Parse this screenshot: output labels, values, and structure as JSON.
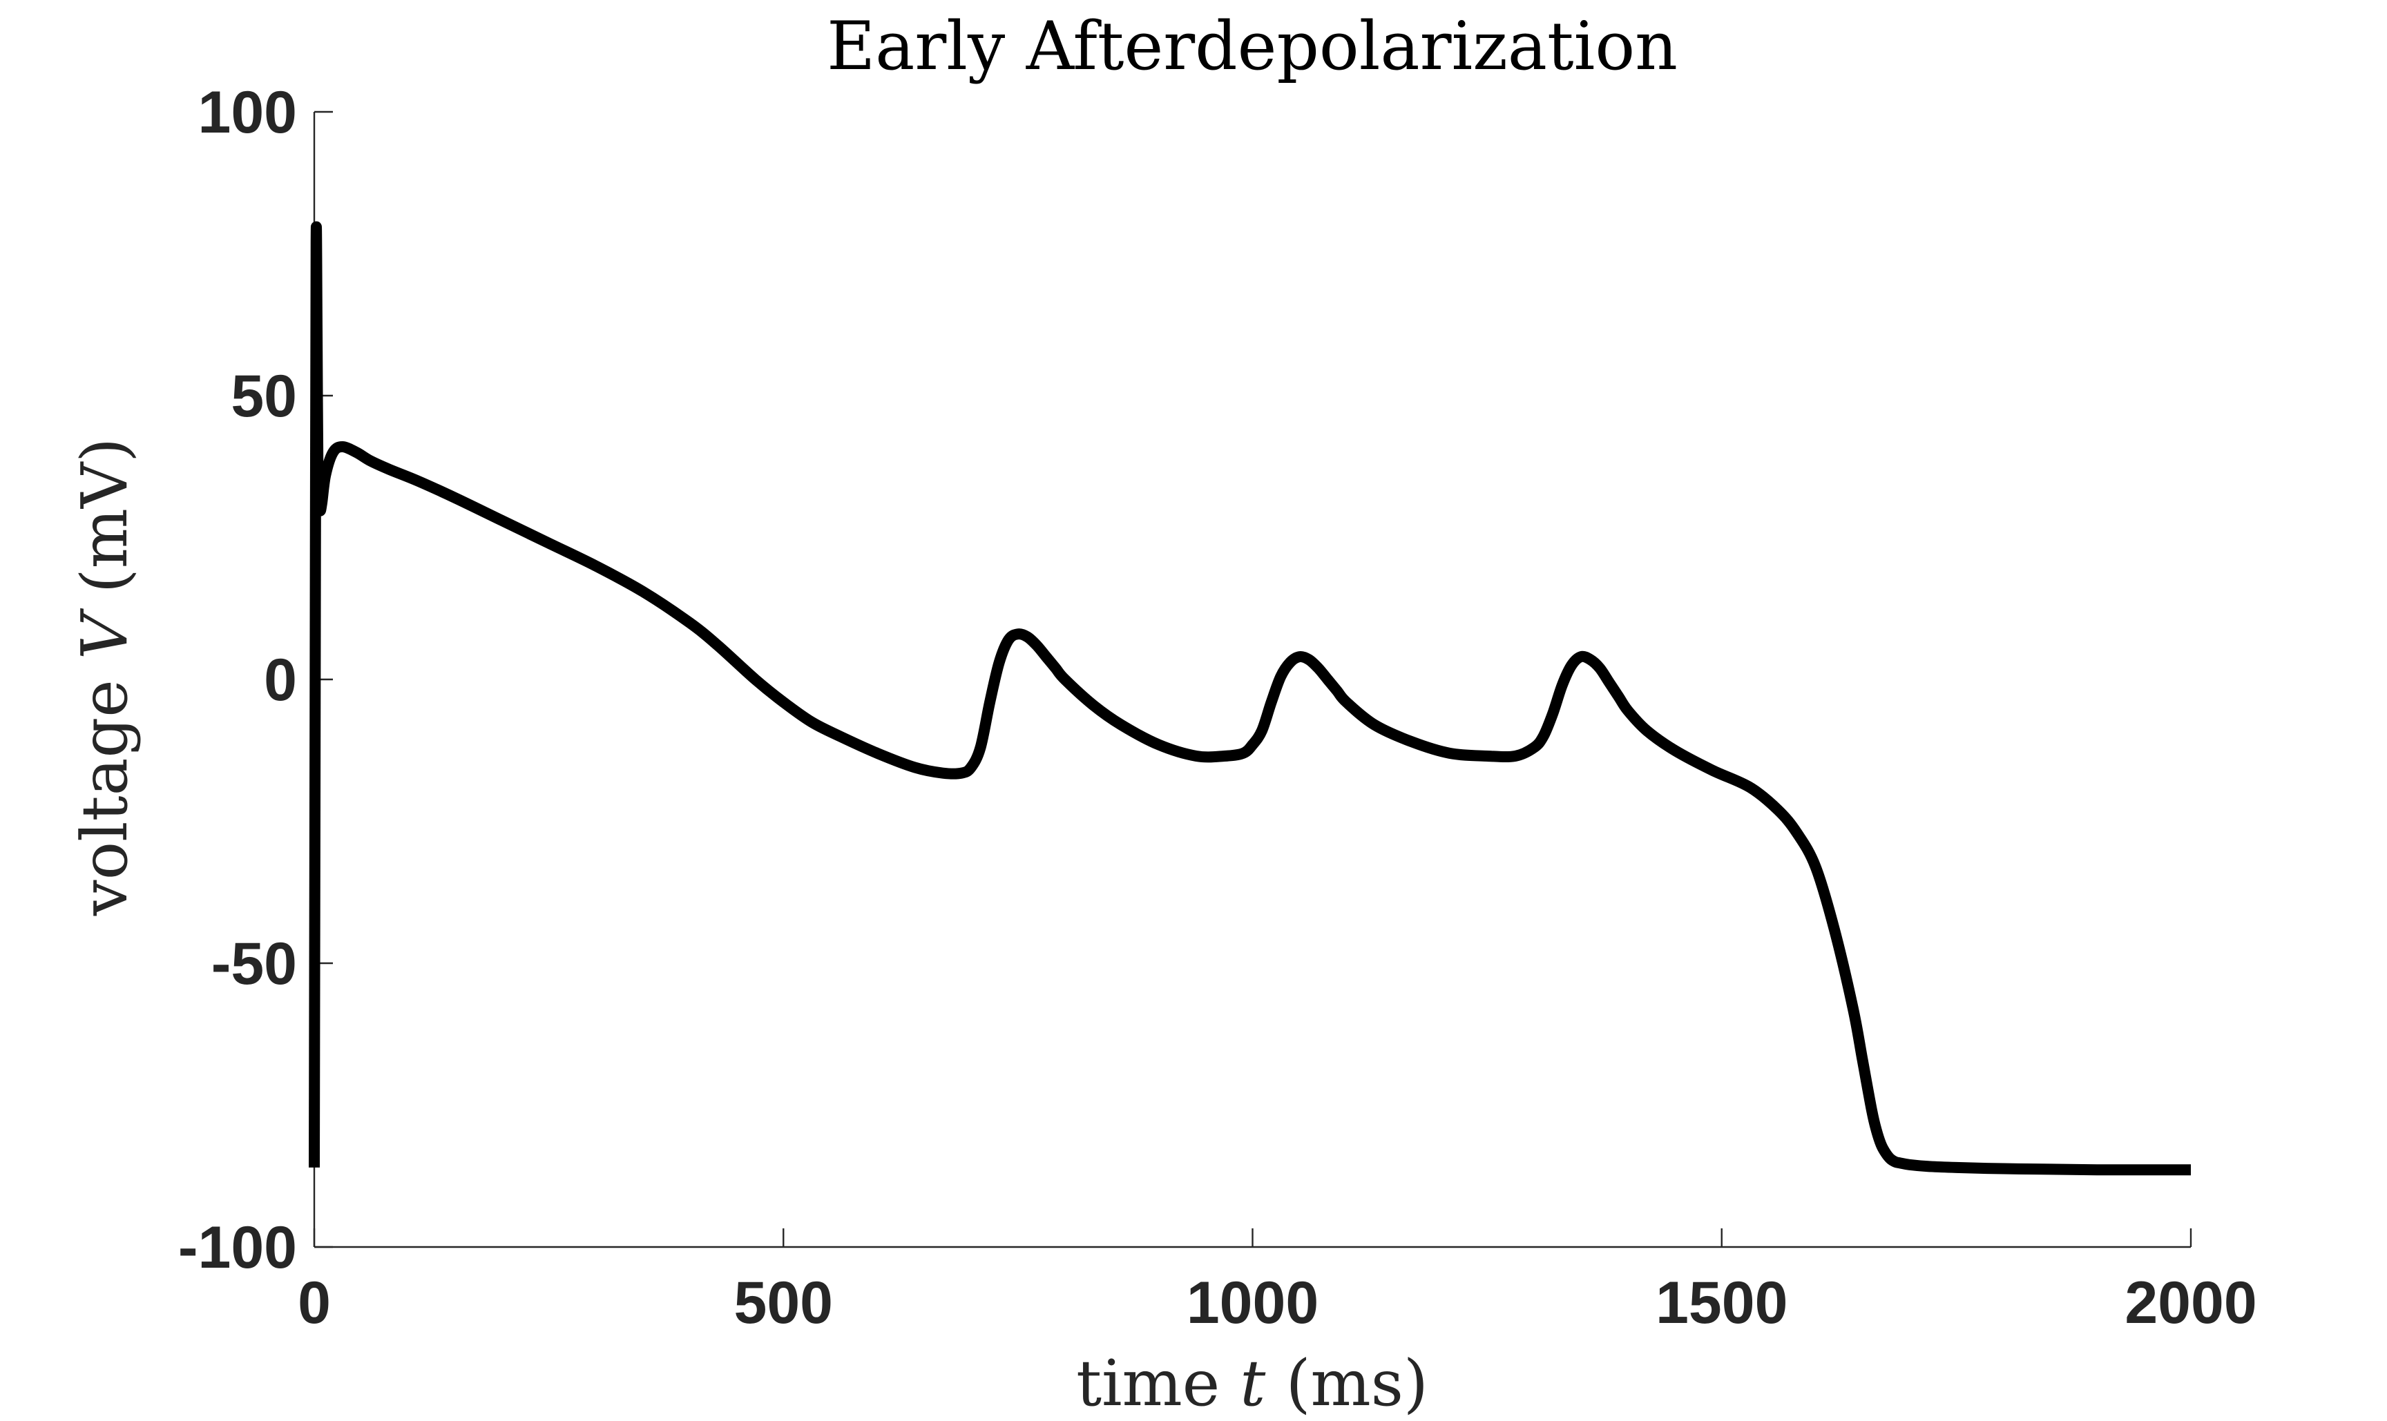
{
  "chart_data": {
    "type": "line",
    "title": "Early Afterdepolarization",
    "xlabel": {
      "prefix": "time ",
      "var": "t",
      "suffix": " (ms)"
    },
    "ylabel": {
      "prefix": "voltage ",
      "var": "V",
      "suffix": " (mV)"
    },
    "xlim": [
      0,
      2000
    ],
    "ylim": [
      -100,
      100
    ],
    "xticks": [
      0,
      500,
      1000,
      1500,
      2000
    ],
    "xtick_labels": [
      "0",
      "500",
      "1000",
      "1500",
      "2000"
    ],
    "yticks": [
      100,
      50,
      0,
      -50,
      -100
    ],
    "ytick_labels": [
      "100",
      "50",
      "0",
      "-50",
      "-100"
    ],
    "grid": false,
    "line_color": "#000000",
    "series": [
      {
        "x": [
          0,
          1,
          2,
          3,
          4,
          6,
          8,
          12,
          20,
          30,
          45,
          60,
          80,
          110,
          150,
          200,
          250,
          300,
          350,
          400,
          430,
          470,
          500,
          530,
          560,
          600,
          640,
          670,
          690,
          700,
          710,
          720,
          730,
          740,
          750,
          760,
          770,
          780,
          790,
          800,
          830,
          860,
          900,
          940,
          970,
          990,
          1000,
          1010,
          1020,
          1030,
          1040,
          1050,
          1060,
          1070,
          1080,
          1090,
          1100,
          1130,
          1170,
          1210,
          1250,
          1280,
          1300,
          1310,
          1320,
          1330,
          1340,
          1350,
          1360,
          1370,
          1380,
          1390,
          1400,
          1420,
          1450,
          1490,
          1530,
          1560,
          1580,
          1600,
          1620,
          1640,
          1650,
          1660,
          1665,
          1670,
          1675,
          1680,
          1685,
          1690,
          1700,
          1720,
          1750,
          1800,
          1850,
          1900,
          1950,
          2000
        ],
        "y": [
          -86,
          0,
          77,
          60,
          35,
          30,
          31,
          36,
          40,
          41,
          40,
          38.5,
          37,
          35,
          32,
          28,
          24,
          20,
          15.5,
          10,
          6,
          0,
          -4,
          -7.5,
          -10,
          -13,
          -15.5,
          -16.5,
          -16.5,
          -15.5,
          -12,
          -4,
          3,
          7,
          8,
          7.5,
          6,
          4,
          2,
          0,
          -4.5,
          -8,
          -11.5,
          -13.5,
          -13.5,
          -13,
          -11.5,
          -9,
          -4,
          0.5,
          3,
          4,
          3.5,
          2,
          0,
          -2,
          -4,
          -8,
          -11,
          -13,
          -13.5,
          -13.5,
          -12,
          -10,
          -6,
          -1,
          2.5,
          4,
          3.5,
          2,
          -0.5,
          -3,
          -5.5,
          -9,
          -12.5,
          -16,
          -19,
          -23,
          -27,
          -33,
          -44,
          -58,
          -67,
          -76,
          -79.5,
          -82,
          -83.5,
          -84.5,
          -85,
          -85.2,
          -85.5,
          -85.8,
          -86,
          -86.2,
          -86.3,
          -86.4,
          -86.4,
          -86.4
        ]
      }
    ]
  }
}
